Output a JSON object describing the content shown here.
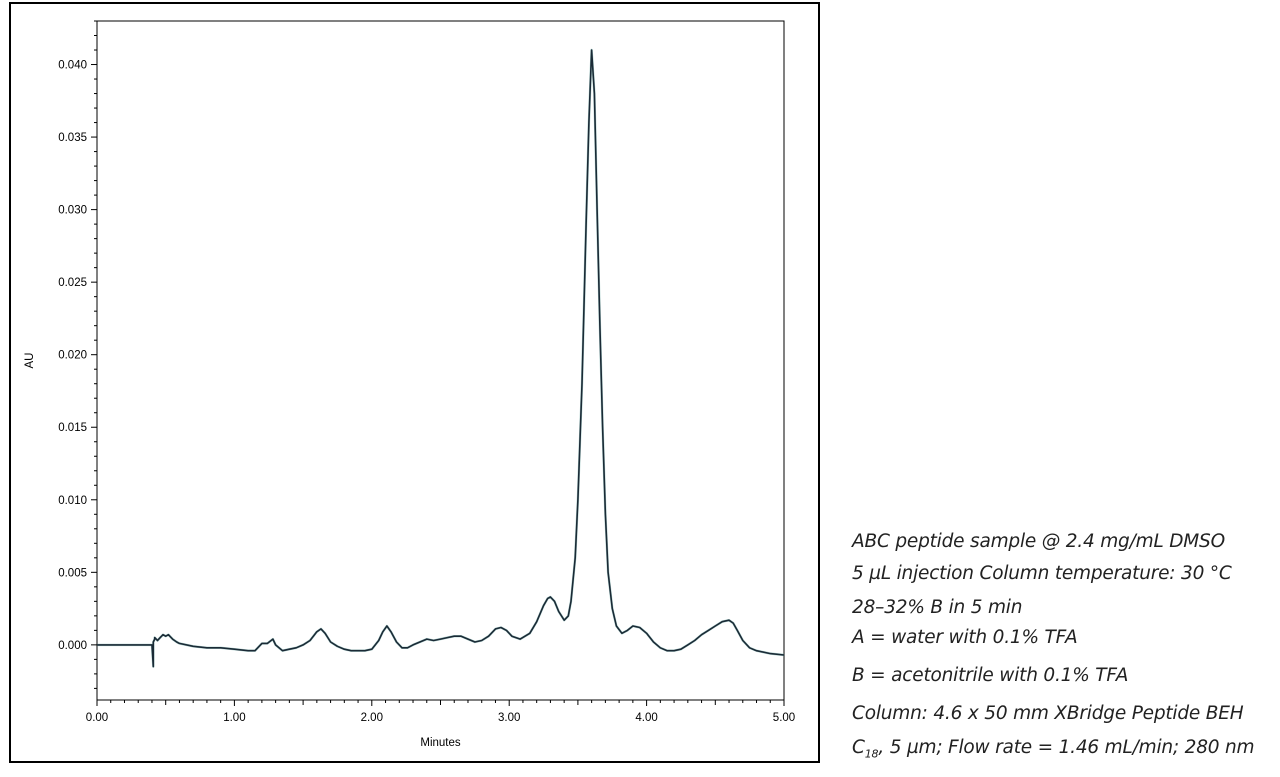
{
  "chart_data": {
    "type": "line",
    "title": "",
    "xlabel": "Minutes",
    "ylabel": "AU",
    "xlim": [
      0.0,
      5.0
    ],
    "ylim": [
      -0.0038,
      0.043
    ],
    "x_ticks": [
      "0.00",
      "1.00",
      "2.00",
      "3.00",
      "4.00",
      "5.00"
    ],
    "y_ticks": [
      "0.000",
      "0.005",
      "0.010",
      "0.015",
      "0.020",
      "0.025",
      "0.030",
      "0.035",
      "0.040"
    ],
    "grid": false,
    "series": [
      {
        "color": "#1b2a36",
        "x": [
          0.0,
          0.2,
          0.4,
          0.41,
          0.41,
          0.42,
          0.42,
          0.44,
          0.46,
          0.48,
          0.5,
          0.52,
          0.55,
          0.58,
          0.6,
          0.7,
          0.8,
          0.9,
          1.0,
          1.1,
          1.15,
          1.2,
          1.24,
          1.28,
          1.3,
          1.35,
          1.4,
          1.45,
          1.5,
          1.55,
          1.6,
          1.63,
          1.66,
          1.7,
          1.75,
          1.8,
          1.85,
          1.9,
          1.95,
          2.0,
          2.05,
          2.08,
          2.11,
          2.14,
          2.18,
          2.22,
          2.26,
          2.3,
          2.35,
          2.4,
          2.45,
          2.5,
          2.55,
          2.6,
          2.65,
          2.7,
          2.75,
          2.8,
          2.85,
          2.9,
          2.94,
          2.98,
          3.02,
          3.08,
          3.15,
          3.2,
          3.25,
          3.28,
          3.3,
          3.33,
          3.36,
          3.4,
          3.43,
          3.45,
          3.48,
          3.5,
          3.53,
          3.56,
          3.58,
          3.6,
          3.62,
          3.64,
          3.66,
          3.68,
          3.7,
          3.72,
          3.75,
          3.78,
          3.82,
          3.86,
          3.9,
          3.95,
          4.0,
          4.05,
          4.1,
          4.15,
          4.2,
          4.25,
          4.3,
          4.35,
          4.4,
          4.45,
          4.5,
          4.55,
          4.6,
          4.63,
          4.66,
          4.7,
          4.75,
          4.8,
          4.9,
          5.0
        ],
        "y": [
          0.0,
          0.0,
          0.0,
          -0.0015,
          0.0002,
          0.0004,
          0.0005,
          0.0003,
          0.0005,
          0.0007,
          0.0006,
          0.0007,
          0.0004,
          0.0002,
          0.0001,
          -0.0001,
          -0.0002,
          -0.0002,
          -0.0003,
          -0.0004,
          -0.0004,
          0.0001,
          0.0001,
          0.0004,
          0.0,
          -0.0004,
          -0.0003,
          -0.0002,
          0.0,
          0.0003,
          0.0009,
          0.0011,
          0.0008,
          0.0002,
          -0.0001,
          -0.0003,
          -0.0004,
          -0.0004,
          -0.0004,
          -0.0003,
          0.0003,
          0.0009,
          0.0013,
          0.0009,
          0.0002,
          -0.0002,
          -0.0002,
          0.0,
          0.0002,
          0.0004,
          0.0003,
          0.0004,
          0.0005,
          0.0006,
          0.0006,
          0.0004,
          0.0002,
          0.0003,
          0.0006,
          0.0011,
          0.0012,
          0.001,
          0.0006,
          0.0004,
          0.0008,
          0.0016,
          0.0027,
          0.0032,
          0.0033,
          0.003,
          0.0023,
          0.0017,
          0.002,
          0.003,
          0.006,
          0.01,
          0.018,
          0.029,
          0.036,
          0.041,
          0.038,
          0.03,
          0.022,
          0.015,
          0.009,
          0.005,
          0.0025,
          0.0013,
          0.0008,
          0.001,
          0.0013,
          0.0012,
          0.0008,
          0.0002,
          -0.0002,
          -0.0004,
          -0.0004,
          -0.0003,
          0.0,
          0.0003,
          0.0007,
          0.001,
          0.0013,
          0.0016,
          0.0017,
          0.0015,
          0.001,
          0.0003,
          -0.0002,
          -0.0004,
          -0.0006,
          -0.0007
        ]
      }
    ]
  },
  "notes": [
    "ABC peptide sample @ 2.4 mg/mL DMSO",
    "5 µL injection Column temperature: 30 °C",
    "28–32% B in 5 min",
    "A = water with 0.1% TFA",
    "B = acetonitrile with 0.1% TFA",
    "Column: 4.6 x 50 mm XBridge Peptide BEH"
  ],
  "last_note": {
    "c": "C",
    "sub": "18",
    "rest": ", 5 µm; Flow rate = 1.46 mL/min; 280 nm"
  }
}
